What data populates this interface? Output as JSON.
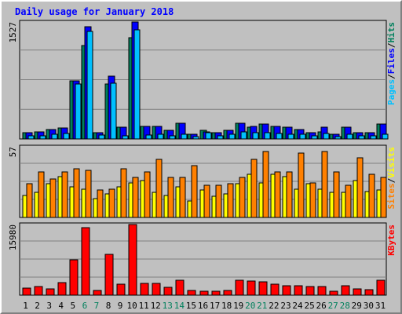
{
  "chart_data": {
    "type": "bar",
    "title": "Daily usage for January 2018",
    "days": [
      "1",
      "2",
      "3",
      "4",
      "5",
      "6",
      "7",
      "8",
      "9",
      "10",
      "11",
      "12",
      "13",
      "14",
      "15",
      "16",
      "17",
      "18",
      "19",
      "20",
      "21",
      "22",
      "23",
      "24",
      "25",
      "26",
      "27",
      "28",
      "29",
      "30",
      "31"
    ],
    "weekend_days": [
      "6",
      "7",
      "13",
      "14",
      "20",
      "21",
      "27",
      "28"
    ],
    "panels": [
      {
        "id": "top",
        "ymax_label": "1527",
        "ylim": [
          0,
          1527
        ],
        "right_labels": [
          {
            "text": "Pages",
            "color": "#00c0ff"
          },
          {
            "text": "/",
            "color": "#000000"
          },
          {
            "text": "Files",
            "color": "#0000ff"
          },
          {
            "text": "/",
            "color": "#000000"
          },
          {
            "text": "Hits",
            "color": "#00805c"
          }
        ],
        "series": [
          {
            "name": "Hits",
            "color": "#00805c",
            "values": [
              80,
              95,
              125,
              145,
              755,
              1215,
              78,
              720,
              150,
              1323,
              165,
              160,
              112,
              205,
              58,
              112,
              82,
              112,
              205,
              150,
              190,
              165,
              150,
              125,
              82,
              90,
              58,
              150,
              82,
              78,
              190
            ]
          },
          {
            "name": "Files",
            "color": "#0000ff",
            "values": [
              80,
              95,
              125,
              145,
              755,
              1470,
              78,
              820,
              150,
              1527,
              165,
              160,
              112,
              205,
              58,
              95,
              82,
              112,
              205,
              160,
              190,
              165,
              150,
              125,
              82,
              150,
              58,
              150,
              82,
              78,
              190
            ]
          },
          {
            "name": "Pages",
            "color": "#00c0ff",
            "values": [
              45,
              45,
              60,
              70,
              720,
              1400,
              55,
              730,
              40,
              1420,
              50,
              60,
              45,
              65,
              35,
              80,
              40,
              60,
              95,
              85,
              80,
              70,
              65,
              60,
              45,
              70,
              35,
              60,
              45,
              40,
              60
            ]
          }
        ]
      },
      {
        "id": "middle",
        "ymax_label": "57",
        "ylim": [
          0,
          57
        ],
        "right_labels": [
          {
            "text": "Sites",
            "color": "#ff8000"
          },
          {
            "text": "/",
            "color": "#000000"
          },
          {
            "text": "Visits",
            "color": "#ffff00"
          }
        ],
        "series": [
          {
            "name": "Visits",
            "color": "#ffff00",
            "values": [
              18,
              20,
              27,
              33,
              25,
              23,
              15,
              19,
              25,
              28,
              30,
              20,
              18,
              25,
              13,
              22,
              17,
              19,
              27,
              35,
              28,
              35,
              33,
              23,
              27,
              23,
              20,
              20,
              30,
              21,
              22
            ]
          },
          {
            "name": "Sites",
            "color": "#ff8000",
            "values": [
              27,
              37,
              31,
              37,
              39,
              38,
              22,
              23,
              39,
              32,
              37,
              47,
              32,
              32,
              42,
              26,
              26,
              27,
              32,
              47,
              53,
              37,
              37,
              52,
              28,
              53,
              37,
              26,
              48,
              35,
              32
            ]
          }
        ]
      },
      {
        "id": "bottom",
        "ymax_label": "15980",
        "ylim": [
          0,
          15980
        ],
        "right_labels": [
          {
            "text": "KBytes",
            "color": "#ff0000"
          }
        ],
        "series": [
          {
            "name": "KBytes",
            "color": "#ff0000",
            "values": [
              1600,
              2000,
              1400,
              2800,
              8000,
              15300,
              1000,
              9200,
              2400,
              15980,
              2600,
              2600,
              1800,
              3300,
              1100,
              800,
              800,
              1000,
              3400,
              3200,
              3000,
              2400,
              2200,
              2100,
              2000,
              1900,
              800,
              2200,
              1400,
              1300,
              3300
            ]
          }
        ]
      }
    ]
  }
}
